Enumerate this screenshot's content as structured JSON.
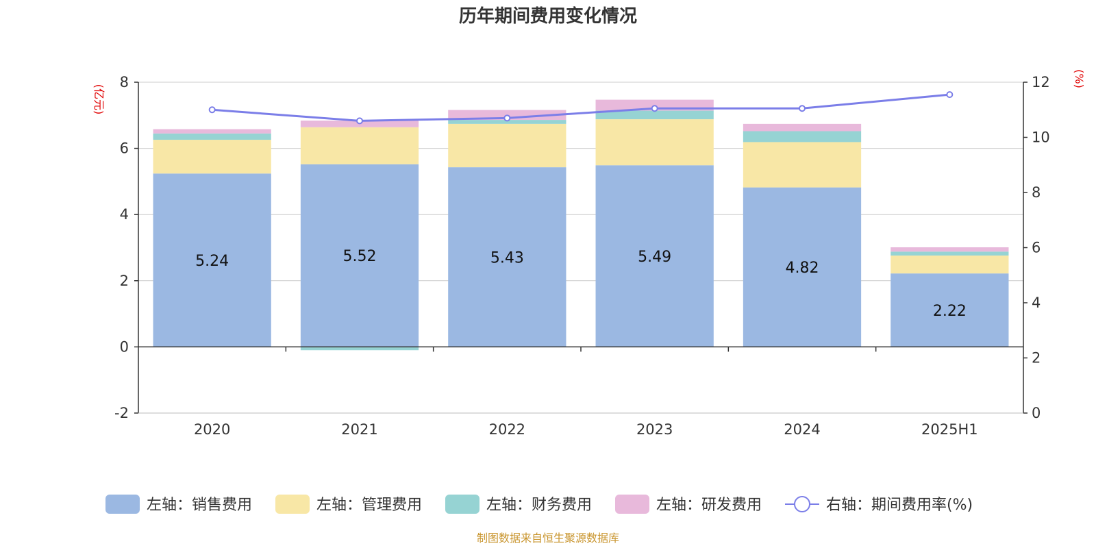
{
  "chart_data": {
    "type": "bar",
    "title": "历年期间费用变化情况",
    "categories": [
      "2020",
      "2021",
      "2022",
      "2023",
      "2024",
      "2025H1"
    ],
    "left_axis": {
      "unit_label": "(亿元)",
      "ylim": [
        -2,
        8
      ],
      "ticks": [
        -2,
        0,
        2,
        4,
        6,
        8
      ]
    },
    "right_axis": {
      "unit_label": "(%)",
      "ylim": [
        0,
        12
      ],
      "ticks": [
        0,
        2,
        4,
        6,
        8,
        10,
        12
      ]
    },
    "stacked": true,
    "grid": true,
    "legend_position": "bottom",
    "series": [
      {
        "name": "左轴：销售费用",
        "axis": "left",
        "type": "bar",
        "color": "#9bb8e2",
        "values": [
          5.24,
          5.52,
          5.43,
          5.49,
          4.82,
          2.22
        ],
        "data_labels": [
          "5.24",
          "5.52",
          "5.43",
          "5.49",
          "4.82",
          "2.22"
        ]
      },
      {
        "name": "左轴：管理费用",
        "axis": "left",
        "type": "bar",
        "color": "#f8e7a6",
        "values": [
          1.02,
          1.12,
          1.31,
          1.39,
          1.37,
          0.54
        ]
      },
      {
        "name": "左轴：财务费用",
        "axis": "left",
        "type": "bar",
        "color": "#96d3d3",
        "values": [
          0.19,
          -0.1,
          0.12,
          0.26,
          0.33,
          0.12
        ]
      },
      {
        "name": "左轴：研发费用",
        "axis": "left",
        "type": "bar",
        "color": "#e8b9db",
        "values": [
          0.13,
          0.2,
          0.3,
          0.33,
          0.22,
          0.13
        ]
      },
      {
        "name": "右轴：期间费用率(%)",
        "axis": "right",
        "type": "line",
        "color": "#7b7ee8",
        "values": [
          11.0,
          10.6,
          10.7,
          11.05,
          11.05,
          11.55
        ]
      }
    ],
    "source": "制图数据来自恒生聚源数据库"
  }
}
